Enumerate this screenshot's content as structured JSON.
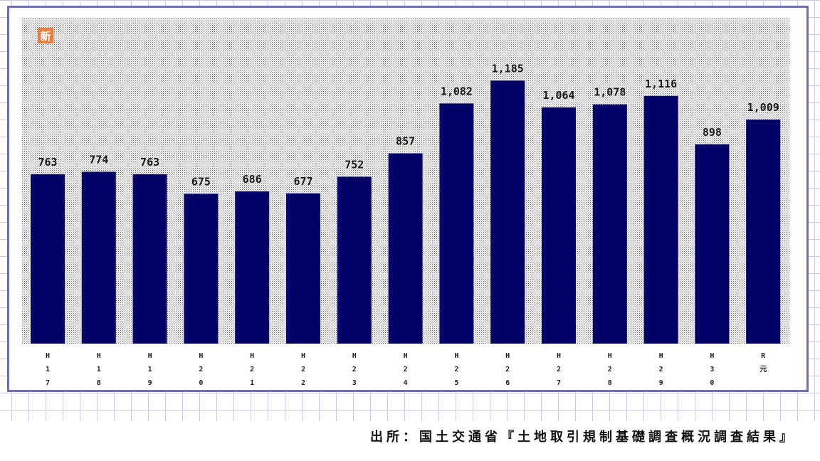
{
  "chart_data": {
    "type": "bar",
    "title": "",
    "xlabel": "",
    "ylabel": "",
    "categories": [
      "H17",
      "H18",
      "H19",
      "H20",
      "H21",
      "H22",
      "H23",
      "H24",
      "H25",
      "H26",
      "H27",
      "H28",
      "H29",
      "H30",
      "R元"
    ],
    "values": [
      763,
      774,
      763,
      675,
      686,
      677,
      752,
      857,
      1082,
      1185,
      1064,
      1078,
      1116,
      898,
      1009
    ],
    "value_labels": [
      "763",
      "774",
      "763",
      "675",
      "686",
      "677",
      "752",
      "857",
      "1,082",
      "1,185",
      "1,064",
      "1,078",
      "1,116",
      "898",
      "1,009"
    ],
    "ylim": [
      0,
      1250
    ],
    "grid": false,
    "legend": "none",
    "bar_color": "#000066",
    "plot_background": "dotted-gray"
  },
  "badge": {
    "label": "新",
    "color": "#f07a3a"
  },
  "frame_color": "#6f70b0",
  "source": "出所：国土交通省『土地取引規制基礎調査概況調査結果』"
}
